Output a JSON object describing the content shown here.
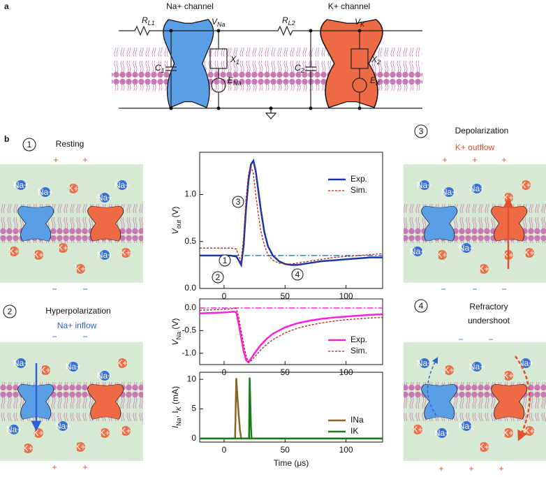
{
  "panel_a": {
    "label": "a",
    "na_channel": "Na+ channel",
    "k_channel": "K+ channel",
    "rl1": [
      "R",
      "L1"
    ],
    "rl2": [
      "R",
      "L2"
    ],
    "vna": [
      "V",
      "Na"
    ],
    "vk": [
      "V",
      "K"
    ],
    "x1": [
      "X",
      "1"
    ],
    "x2": [
      "X",
      "2"
    ],
    "c1": [
      "C",
      "1"
    ],
    "c2": [
      "C",
      "2"
    ],
    "ena": [
      "E",
      "Na"
    ],
    "ek": [
      "E",
      "K"
    ]
  },
  "panel_b": {
    "label": "b",
    "states": [
      {
        "number": "1",
        "title": [
          "Resting"
        ],
        "top": [
          "+",
          "+"
        ],
        "bottom": [
          "−",
          "−"
        ],
        "ions": [
          "Na+",
          "Na+",
          "K+",
          "Na+",
          "Na+",
          "K+",
          "K+",
          "K+",
          "K+",
          "Na+",
          "K+"
        ]
      },
      {
        "number": "2",
        "title": [
          "Hyperpolarization",
          "Na+ inflow"
        ],
        "top": [
          "−",
          "−"
        ],
        "bottom": [
          "+",
          "+"
        ],
        "ions": [
          "Na+",
          "K+",
          "Na+",
          "Na+",
          "K+",
          "Na+",
          "K+",
          "Na+",
          "K+",
          "K+",
          "K+",
          "K+"
        ]
      },
      {
        "number": "3",
        "title": [
          "Depolarization",
          "K+ outflow"
        ],
        "top": [
          "+",
          "+",
          "+"
        ],
        "bottom": [
          "−",
          "−",
          "−"
        ],
        "ions": [
          "Na+",
          "Na+",
          "Na+",
          "K+",
          "K+",
          "Na+",
          "K+",
          "Na+",
          "K+",
          "K+",
          "K+"
        ]
      },
      {
        "number": "4",
        "title": [
          "Refractory",
          "undershoot"
        ],
        "top": [
          "−",
          "−"
        ],
        "bottom": [
          "+",
          "+",
          "+"
        ],
        "ions": [
          "Na+",
          "K+",
          "Na+",
          "K+",
          "Na+",
          "K+",
          "Na+",
          "Na+",
          "K+",
          "K+",
          "K+"
        ]
      }
    ]
  },
  "chart_data": [
    {
      "type": "line",
      "ylabel": [
        {
          "t": "V"
        },
        {
          "t": "out",
          "sub": true
        },
        {
          "t": " (V)"
        }
      ],
      "x": [
        -20,
        -10,
        0,
        5,
        10,
        12,
        14,
        16,
        18,
        20,
        22,
        24,
        26,
        28,
        30,
        33,
        36,
        40,
        45,
        50,
        55,
        60,
        70,
        80,
        90,
        100,
        110,
        120,
        130
      ],
      "series": [
        {
          "name": "Exp.",
          "color": "#1c36a8",
          "style": "solid",
          "values": [
            0.35,
            0.35,
            0.35,
            0.35,
            0.34,
            0.3,
            0.25,
            0.45,
            0.85,
            1.15,
            1.32,
            1.36,
            1.25,
            1.05,
            0.85,
            0.6,
            0.45,
            0.35,
            0.29,
            0.26,
            0.25,
            0.25,
            0.27,
            0.29,
            0.3,
            0.31,
            0.32,
            0.33,
            0.33
          ]
        },
        {
          "name": "Sim.",
          "color": "#b0201c",
          "style": "dotted",
          "values": [
            0.43,
            0.43,
            0.43,
            0.43,
            0.42,
            0.35,
            0.28,
            0.55,
            0.95,
            1.22,
            1.3,
            1.22,
            1.0,
            0.8,
            0.62,
            0.46,
            0.36,
            0.3,
            0.27,
            0.26,
            0.26,
            0.27,
            0.29,
            0.31,
            0.33,
            0.34,
            0.35,
            0.36,
            0.37
          ]
        }
      ],
      "hline": {
        "value": 0.35,
        "color": "#2a7fc0"
      },
      "annotations": [
        "1",
        "2",
        "3",
        "4"
      ],
      "xlim": [
        -20,
        130
      ],
      "xticks": [
        0,
        50,
        100
      ],
      "ylim": [
        0,
        1.45
      ],
      "yticks": [
        {
          "value": 0,
          "label": "0.0"
        },
        0.5,
        {
          "value": 1,
          "label": "1.0"
        }
      ],
      "legend": "upper right"
    },
    {
      "type": "line",
      "ylabel": [
        {
          "t": "V"
        },
        {
          "t": "Na",
          "sub": true
        },
        {
          "t": " (V)"
        }
      ],
      "x": [
        -20,
        -10,
        0,
        5,
        8,
        10,
        12,
        14,
        16,
        18,
        20,
        22,
        25,
        30,
        35,
        40,
        50,
        60,
        70,
        80,
        90,
        100,
        110,
        120,
        130
      ],
      "series": [
        {
          "name": "Exp.",
          "color": "#ff1ee0",
          "style": "solid",
          "values": [
            -0.12,
            -0.11,
            -0.1,
            -0.09,
            -0.08,
            -0.1,
            -0.35,
            -0.65,
            -0.95,
            -1.15,
            -1.2,
            -1.12,
            -1.0,
            -0.82,
            -0.68,
            -0.57,
            -0.43,
            -0.34,
            -0.28,
            -0.24,
            -0.21,
            -0.19,
            -0.17,
            -0.15,
            -0.14
          ]
        },
        {
          "name": "Sim.",
          "color": "#b0201c",
          "style": "dotted",
          "values": [
            -0.05,
            -0.04,
            -0.03,
            -0.02,
            -0.01,
            -0.01,
            -0.2,
            -0.5,
            -0.8,
            -1.05,
            -1.2,
            -1.17,
            -1.08,
            -0.93,
            -0.8,
            -0.7,
            -0.55,
            -0.45,
            -0.38,
            -0.33,
            -0.29,
            -0.26,
            -0.24,
            -0.22,
            -0.21
          ]
        }
      ],
      "hline": {
        "value": 0,
        "color": "#ff1ee0"
      },
      "xlim": [
        -20,
        130
      ],
      "xticks": [
        0,
        50,
        100
      ],
      "ylim": [
        -1.25,
        0.2
      ],
      "yticks": [
        {
          "value": 0,
          "label": "0.0"
        },
        {
          "value": -0.5,
          "label": "-0.5"
        },
        {
          "value": -1,
          "label": "-1.0"
        }
      ],
      "legend": "lower right"
    },
    {
      "type": "line",
      "ylabel": [
        {
          "t": "I"
        },
        {
          "t": "Na",
          "sub": true
        },
        {
          "t": ", I"
        },
        {
          "t": "K",
          "sub": true
        },
        {
          "t": " (mA)"
        }
      ],
      "xlabel": "Time (μs)",
      "series": [
        {
          "name": "INa",
          "color": "#8a6420",
          "style": "solid",
          "x": [
            -20,
            9,
            10,
            11,
            12,
            13,
            14,
            20,
            130
          ],
          "values": [
            0,
            0,
            10.2,
            7,
            4,
            1.5,
            0,
            0,
            0
          ]
        },
        {
          "name": "IK",
          "color": "#1a7a1a",
          "style": "solid",
          "x": [
            -20,
            20.5,
            21,
            21.5,
            22,
            22.5,
            130
          ],
          "values": [
            0,
            0,
            10.3,
            6,
            2,
            0,
            0
          ]
        }
      ],
      "xlim": [
        -20,
        130
      ],
      "xticks": [
        0,
        50,
        100
      ],
      "ylim": [
        -0.6,
        11.2
      ],
      "yticks": [
        0,
        5,
        10
      ],
      "legend": "lower right"
    }
  ]
}
